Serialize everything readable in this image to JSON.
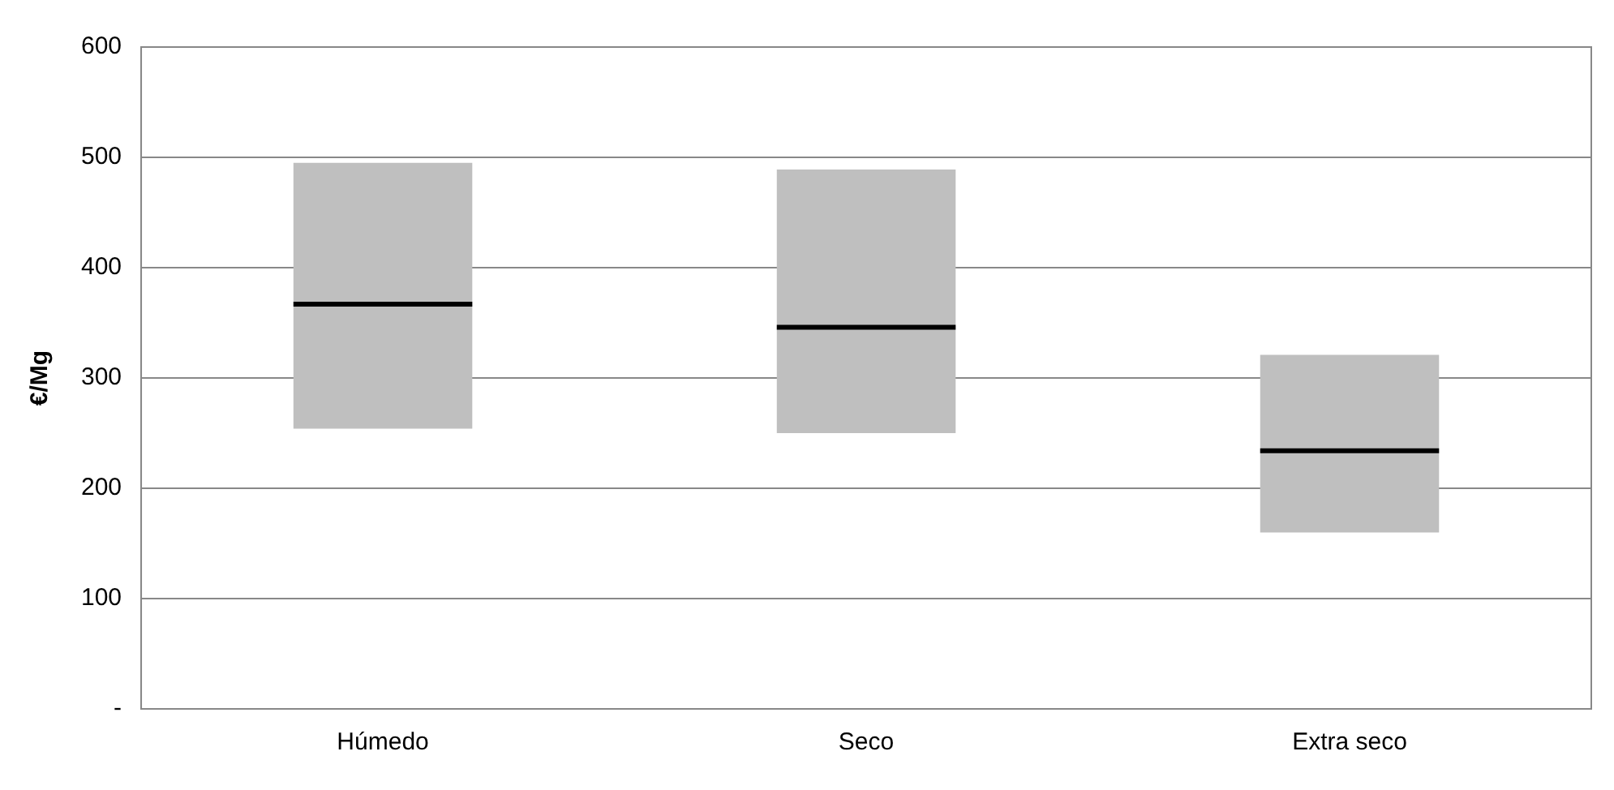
{
  "chart_data": {
    "type": "box",
    "ylabel": "€/Mg",
    "categories": [
      "Húmedo",
      "Seco",
      "Extra seco"
    ],
    "series": [
      {
        "color": "#bfbfbf",
        "boxes": [
          {
            "low": 254,
            "q1": 254,
            "median": 367,
            "q3": 495,
            "high": 495
          },
          {
            "low": 250,
            "q1": 250,
            "median": 346,
            "q3": 489,
            "high": 489
          },
          {
            "low": 160,
            "q1": 160,
            "median": 234,
            "q3": 321,
            "high": 321
          }
        ]
      }
    ],
    "ylim": [
      0,
      600
    ],
    "yticks": [
      {
        "value": 0,
        "label": "-"
      },
      100,
      200,
      300,
      400,
      500,
      600
    ],
    "grid": "y",
    "legend": false
  }
}
